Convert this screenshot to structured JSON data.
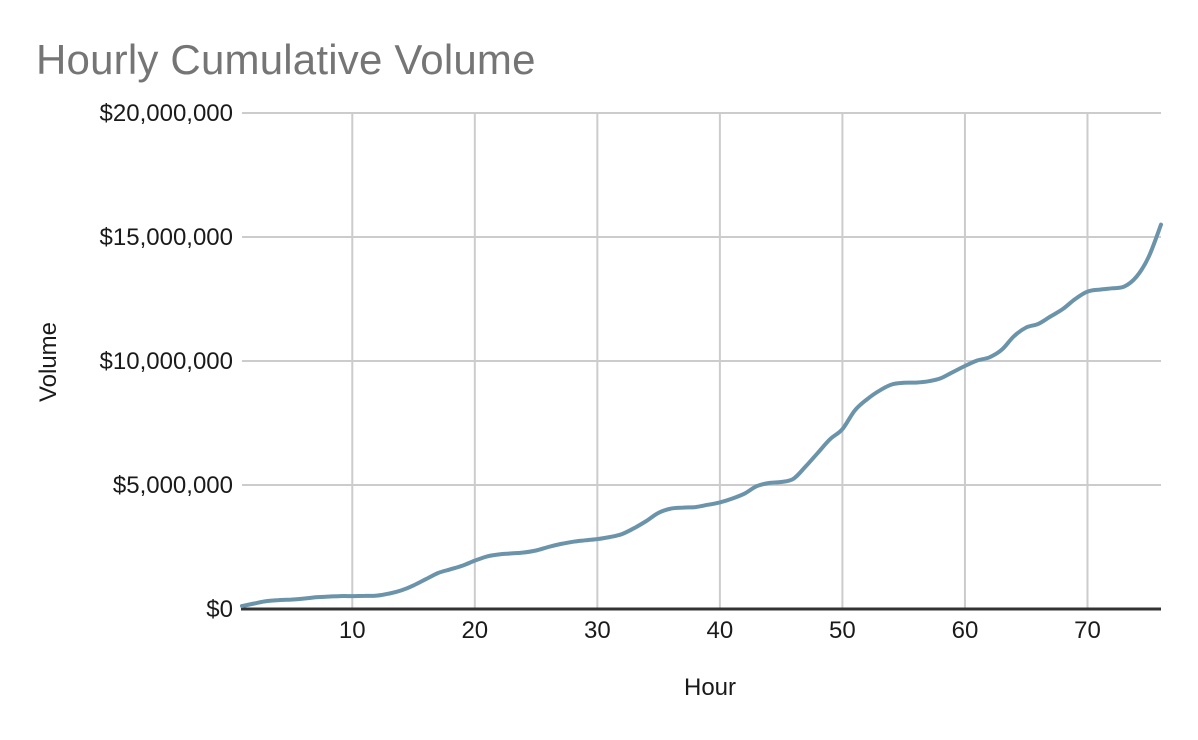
{
  "chart_data": {
    "type": "line",
    "title": "Hourly Cumulative Volume",
    "xlabel": "Hour",
    "ylabel": "Volume",
    "xlim": [
      1,
      76
    ],
    "ylim": [
      0,
      20000000
    ],
    "x_ticks": [
      10,
      20,
      30,
      40,
      50,
      60,
      70
    ],
    "y_ticks": [
      0,
      5000000,
      10000000,
      15000000,
      20000000
    ],
    "y_tick_labels": [
      "$0",
      "$5,000,000",
      "$10,000,000",
      "$15,000,000",
      "$20,000,000"
    ],
    "grid": true,
    "legend": "none",
    "line_smooth": true,
    "colors": {
      "line": "#6b94ab",
      "gridline": "#cccccc",
      "axis_line": "#333333",
      "title_text": "#757575",
      "tick_text": "#1a1a1a"
    },
    "series": [
      {
        "name": "Volume",
        "color": "#6b94ab",
        "x": [
          1,
          2,
          3,
          4,
          5,
          6,
          7,
          8,
          9,
          10,
          11,
          12,
          13,
          14,
          15,
          16,
          17,
          18,
          19,
          20,
          21,
          22,
          23,
          24,
          25,
          26,
          27,
          28,
          29,
          30,
          31,
          32,
          33,
          34,
          35,
          36,
          37,
          38,
          39,
          40,
          41,
          42,
          43,
          44,
          45,
          46,
          47,
          48,
          49,
          50,
          51,
          52,
          53,
          54,
          55,
          56,
          57,
          58,
          59,
          60,
          61,
          62,
          63,
          64,
          65,
          66,
          67,
          68,
          69,
          70,
          71,
          72,
          73,
          74,
          75,
          76
        ],
        "values": [
          120000,
          220000,
          320000,
          360000,
          380000,
          420000,
          470000,
          500000,
          520000,
          520000,
          530000,
          540000,
          620000,
          750000,
          950000,
          1200000,
          1450000,
          1600000,
          1750000,
          1950000,
          2120000,
          2200000,
          2240000,
          2280000,
          2360000,
          2500000,
          2620000,
          2710000,
          2770000,
          2820000,
          2900000,
          3020000,
          3260000,
          3550000,
          3880000,
          4050000,
          4090000,
          4110000,
          4200000,
          4300000,
          4450000,
          4650000,
          4950000,
          5080000,
          5120000,
          5250000,
          5750000,
          6300000,
          6850000,
          7250000,
          8000000,
          8450000,
          8800000,
          9050000,
          9120000,
          9130000,
          9180000,
          9300000,
          9550000,
          9800000,
          10020000,
          10150000,
          10450000,
          11000000,
          11350000,
          11500000,
          11800000,
          12100000,
          12500000,
          12800000,
          12880000,
          12930000,
          13000000,
          13400000,
          14200000,
          15500000
        ]
      }
    ]
  }
}
